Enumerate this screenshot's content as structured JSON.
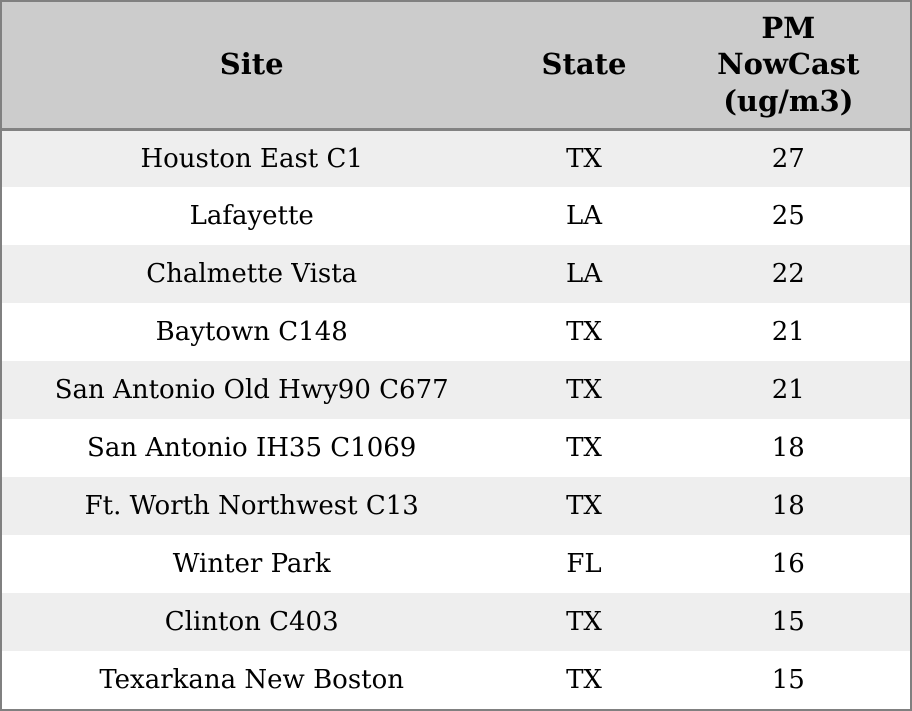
{
  "chart_data": {
    "type": "table",
    "title": "",
    "columns": [
      "Site",
      "State",
      "PM NowCast (ug/m3)"
    ],
    "rows": [
      {
        "site": "Houston East C1",
        "state": "TX",
        "pm_nowcast": 27
      },
      {
        "site": "Lafayette",
        "state": "LA",
        "pm_nowcast": 25
      },
      {
        "site": "Chalmette Vista",
        "state": "LA",
        "pm_nowcast": 22
      },
      {
        "site": "Baytown C148",
        "state": "TX",
        "pm_nowcast": 21
      },
      {
        "site": "San Antonio Old Hwy90 C677",
        "state": "TX",
        "pm_nowcast": 21
      },
      {
        "site": "San Antonio IH35 C1069",
        "state": "TX",
        "pm_nowcast": 18
      },
      {
        "site": "Ft. Worth Northwest C13",
        "state": "TX",
        "pm_nowcast": 18
      },
      {
        "site": "Winter Park",
        "state": "FL",
        "pm_nowcast": 16
      },
      {
        "site": "Clinton C403",
        "state": "TX",
        "pm_nowcast": 15
      },
      {
        "site": "Texarkana New Boston",
        "state": "TX",
        "pm_nowcast": 15
      }
    ]
  },
  "header": {
    "site_label": "Site",
    "state_label": "State",
    "pm_label": "PM\nNowCast\n(ug/m3)"
  },
  "colors": {
    "outer_border": "#808080",
    "header_background": "#cccccc",
    "header_separator": "#828282",
    "row_stripe": "#eeeeee",
    "row_plain": "#ffffff",
    "text": "#000000"
  }
}
